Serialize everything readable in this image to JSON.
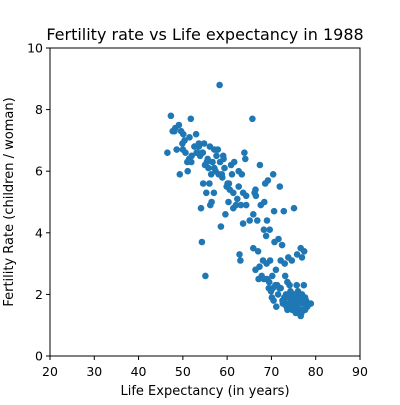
{
  "chart_data": {
    "type": "scatter",
    "title": "Fertility rate vs Life expectancy in 1988",
    "xlabel": "Life Expectancy (in years)",
    "ylabel": "Fertility Rate (children / woman)",
    "xlim": [
      20,
      90
    ],
    "ylim": [
      0,
      10
    ],
    "xticks": [
      "20",
      "30",
      "40",
      "50",
      "60",
      "70",
      "80",
      "90"
    ],
    "yticks": [
      "0",
      "2",
      "4",
      "6",
      "8",
      "10"
    ],
    "grid": false,
    "legend": "none",
    "marker_color": "#1f77b4",
    "series": [
      {
        "points": [
          [
            46.5,
            6.6
          ],
          [
            47.3,
            7.8
          ],
          [
            47.7,
            7.3
          ],
          [
            48.3,
            7.4
          ],
          [
            48.6,
            6.7
          ],
          [
            49.1,
            7.5
          ],
          [
            49.3,
            5.9
          ],
          [
            49.6,
            7.3
          ],
          [
            50.1,
            7.2
          ],
          [
            50.4,
            7.0
          ],
          [
            50.6,
            6.6
          ],
          [
            51.0,
            6.3
          ],
          [
            51.1,
            6.0
          ],
          [
            51.5,
            7.1
          ],
          [
            51.8,
            7.7
          ],
          [
            51.9,
            6.3
          ],
          [
            52.6,
            6.8
          ],
          [
            53.0,
            7.2
          ],
          [
            53.1,
            6.6
          ],
          [
            53.3,
            6.6
          ],
          [
            53.6,
            6.8
          ],
          [
            53.9,
            6.5
          ],
          [
            54.1,
            4.8
          ],
          [
            54.3,
            3.7
          ],
          [
            54.4,
            6.6
          ],
          [
            54.6,
            5.6
          ],
          [
            54.8,
            6.9
          ],
          [
            55.0,
            6.2
          ],
          [
            55.1,
            2.6
          ],
          [
            55.3,
            5.3
          ],
          [
            55.6,
            6.4
          ],
          [
            55.8,
            6.1
          ],
          [
            56.0,
            5.6
          ],
          [
            56.1,
            6.8
          ],
          [
            56.2,
            4.9
          ],
          [
            56.5,
            5.0
          ],
          [
            56.7,
            6.3
          ],
          [
            57.0,
            5.3
          ],
          [
            57.1,
            6.7
          ],
          [
            57.4,
            6.0
          ],
          [
            57.6,
            6.5
          ],
          [
            57.9,
            6.7
          ],
          [
            58.1,
            5.9
          ],
          [
            58.3,
            8.8
          ],
          [
            58.4,
            6.3
          ],
          [
            58.6,
            4.2
          ],
          [
            58.9,
            5.8
          ],
          [
            59.1,
            6.5
          ],
          [
            59.4,
            6.1
          ],
          [
            59.6,
            4.6
          ],
          [
            59.9,
            5.5
          ],
          [
            60.1,
            5.6
          ],
          [
            60.3,
            5.0
          ],
          [
            60.6,
            5.4
          ],
          [
            60.9,
            6.2
          ],
          [
            61.1,
            5.9
          ],
          [
            61.4,
            4.8
          ],
          [
            61.6,
            6.3
          ],
          [
            62.0,
            4.9
          ],
          [
            62.3,
            5.1
          ],
          [
            62.6,
            6.0
          ],
          [
            62.8,
            3.3
          ],
          [
            63.1,
            4.9
          ],
          [
            63.3,
            5.9
          ],
          [
            63.6,
            5.3
          ],
          [
            63.6,
            4.3
          ],
          [
            63.9,
            6.6
          ],
          [
            64.1,
            6.4
          ],
          [
            64.3,
            5.2
          ],
          [
            65.1,
            4.4
          ],
          [
            65.7,
            7.7
          ],
          [
            65.9,
            3.5
          ],
          [
            66.2,
            5.3
          ],
          [
            66.4,
            5.4
          ],
          [
            66.4,
            2.8
          ],
          [
            66.8,
            4.4
          ],
          [
            67.1,
            2.5
          ],
          [
            67.4,
            6.2
          ],
          [
            67.6,
            4.9
          ],
          [
            67.8,
            2.6
          ],
          [
            68.1,
            3.1
          ],
          [
            68.4,
            5.0
          ],
          [
            68.6,
            5.6
          ],
          [
            68.8,
            3.9
          ],
          [
            69.0,
            2.5
          ],
          [
            69.2,
            5.7
          ],
          [
            69.4,
            2.2
          ],
          [
            69.6,
            4.1
          ],
          [
            69.7,
            3.1
          ],
          [
            69.9,
            2.1
          ],
          [
            70.1,
            1.9
          ],
          [
            70.4,
            5.9
          ],
          [
            70.6,
            4.7
          ],
          [
            70.7,
            3.7
          ],
          [
            70.9,
            2.3
          ],
          [
            71.1,
            1.6
          ],
          [
            71.3,
            2.3
          ],
          [
            71.6,
            3.8
          ],
          [
            71.9,
            5.5
          ],
          [
            72.1,
            2.2
          ],
          [
            72.4,
            3.6
          ],
          [
            72.6,
            1.7
          ],
          [
            72.8,
            4.7
          ],
          [
            73.1,
            2.6
          ],
          [
            73.3,
            2.0
          ],
          [
            73.6,
            1.5
          ],
          [
            73.8,
            1.6
          ],
          [
            74.1,
            2.3
          ],
          [
            74.3,
            1.9
          ],
          [
            74.6,
            3.1
          ],
          [
            74.8,
            1.6
          ],
          [
            75.1,
            4.8
          ],
          [
            75.3,
            2.0
          ],
          [
            75.6,
            1.7
          ],
          [
            75.8,
            3.3
          ],
          [
            76.1,
            1.5
          ],
          [
            76.3,
            1.9
          ],
          [
            76.6,
            1.3
          ],
          [
            76.8,
            1.4
          ],
          [
            77.1,
            1.7
          ],
          [
            77.3,
            2.3
          ],
          [
            77.6,
            1.5
          ],
          [
            77.8,
            1.8
          ],
          [
            78.1,
            1.6
          ],
          [
            78.4,
            1.7
          ],
          [
            75.2,
            1.8
          ],
          [
            73.4,
            1.6
          ],
          [
            74.0,
            1.7
          ],
          [
            72.5,
            1.8
          ],
          [
            76.0,
            2.1
          ],
          [
            70.3,
            2.2
          ],
          [
            68.3,
            2.5
          ],
          [
            67.3,
            2.9
          ],
          [
            69.5,
            2.4
          ],
          [
            71.5,
            2.0
          ],
          [
            72.9,
            1.9
          ],
          [
            74.5,
            1.8
          ],
          [
            75.9,
            1.6
          ],
          [
            77.0,
            1.5
          ],
          [
            76.4,
            1.8
          ],
          [
            75.7,
            2.3
          ],
          [
            74.9,
            2.0
          ],
          [
            73.6,
            2.4
          ],
          [
            71.8,
            2.2
          ],
          [
            70.2,
            2.6
          ],
          [
            68.9,
            3.0
          ],
          [
            67.0,
            3.4
          ],
          [
            65.9,
            4.6
          ],
          [
            64.3,
            4.9
          ],
          [
            66.5,
            5.2
          ],
          [
            76.6,
            3.5
          ],
          [
            76.9,
            3.2
          ],
          [
            77.4,
            3.4
          ],
          [
            78.9,
            1.7
          ],
          [
            68.3,
            4.1
          ],
          [
            69.0,
            4.4
          ],
          [
            63.0,
            3.1
          ],
          [
            61.4,
            5.3
          ],
          [
            59.2,
            6.4
          ],
          [
            57.1,
            6.1
          ],
          [
            55.4,
            6.3
          ],
          [
            53.6,
            6.9
          ],
          [
            51.4,
            6.4
          ],
          [
            49.9,
            6.9
          ],
          [
            48.1,
            7.3
          ],
          [
            50.0,
            6.7
          ],
          [
            52.0,
            6.5
          ],
          [
            54.5,
            6.6
          ],
          [
            56.4,
            5.9
          ],
          [
            58.8,
            5.9
          ],
          [
            60.4,
            5.6
          ],
          [
            62.6,
            5.5
          ],
          [
            73.0,
            3.0
          ],
          [
            72.1,
            3.1
          ],
          [
            73.8,
            3.2
          ],
          [
            71.0,
            2.8
          ],
          [
            70.5,
            1.8
          ],
          [
            72.8,
            1.8
          ],
          [
            74.3,
            2.1
          ],
          [
            75.5,
            1.4
          ],
          [
            76.2,
            1.9
          ],
          [
            74.7,
            1.5
          ],
          [
            73.9,
            1.9
          ],
          [
            76.9,
            2.0
          ],
          [
            75.1,
            1.7
          ],
          [
            77.6,
            1.9
          ]
        ]
      }
    ]
  }
}
